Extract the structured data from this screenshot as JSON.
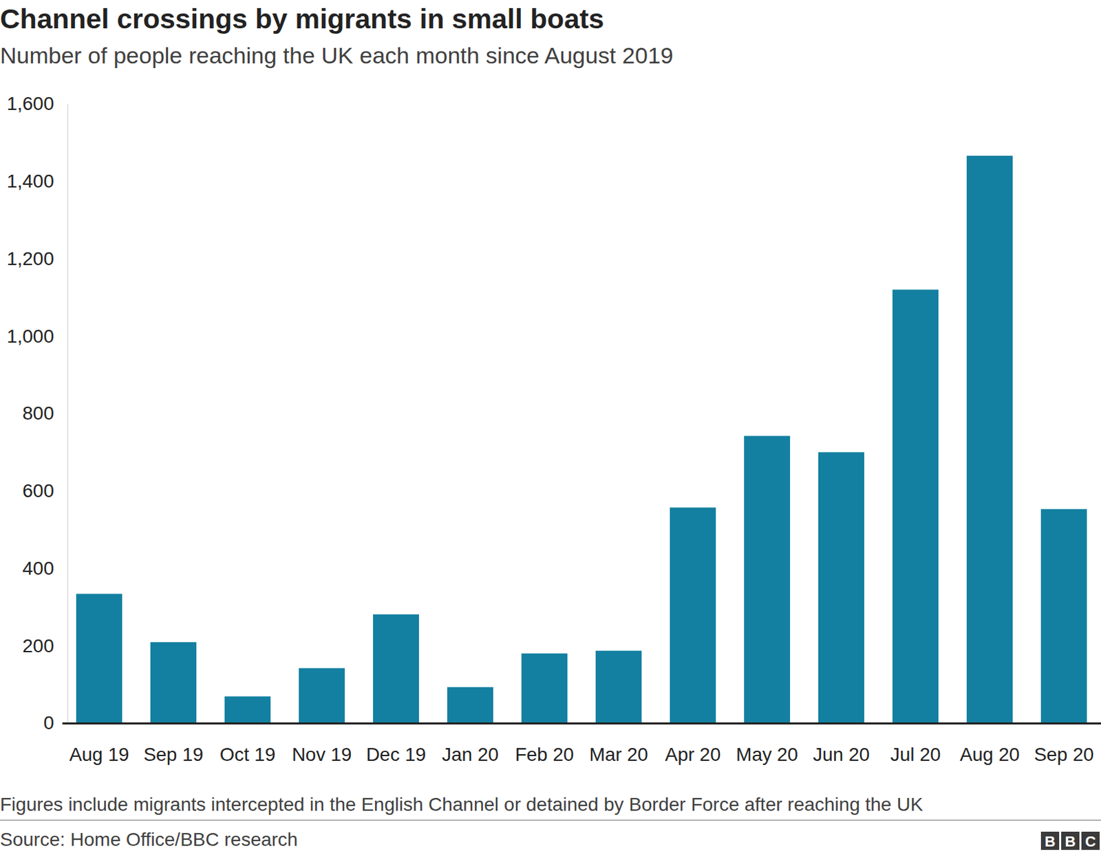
{
  "chart_data": {
    "type": "bar",
    "title": "Channel crossings by migrants in small boats",
    "subtitle": "Number of people reaching the UK each month since August 2019",
    "categories": [
      "Aug 19",
      "Sep 19",
      "Oct 19",
      "Nov 19",
      "Dec 19",
      "Jan 20",
      "Feb 20",
      "Mar 20",
      "Apr 20",
      "May 20",
      "Jun 20",
      "Jul 20",
      "Aug 20",
      "Sep 20"
    ],
    "values": [
      334,
      209,
      69,
      142,
      281,
      93,
      180,
      187,
      557,
      742,
      700,
      1120,
      1466,
      553
    ],
    "color": "#1380a1",
    "ylim": [
      0,
      1600
    ],
    "yticks": [
      0,
      200,
      400,
      600,
      800,
      {
        "value": 1000,
        "label": "1,000"
      },
      {
        "value": 1200,
        "label": "1,200"
      },
      {
        "value": 1400,
        "label": "1,400"
      },
      {
        "value": 1600,
        "label": "1,600"
      }
    ],
    "grid": false,
    "note": "Figures include migrants intercepted in the English Channel or detained by Border Force after reaching the UK",
    "source": "Source: Home Office/BBC research",
    "logo": "BBC"
  }
}
